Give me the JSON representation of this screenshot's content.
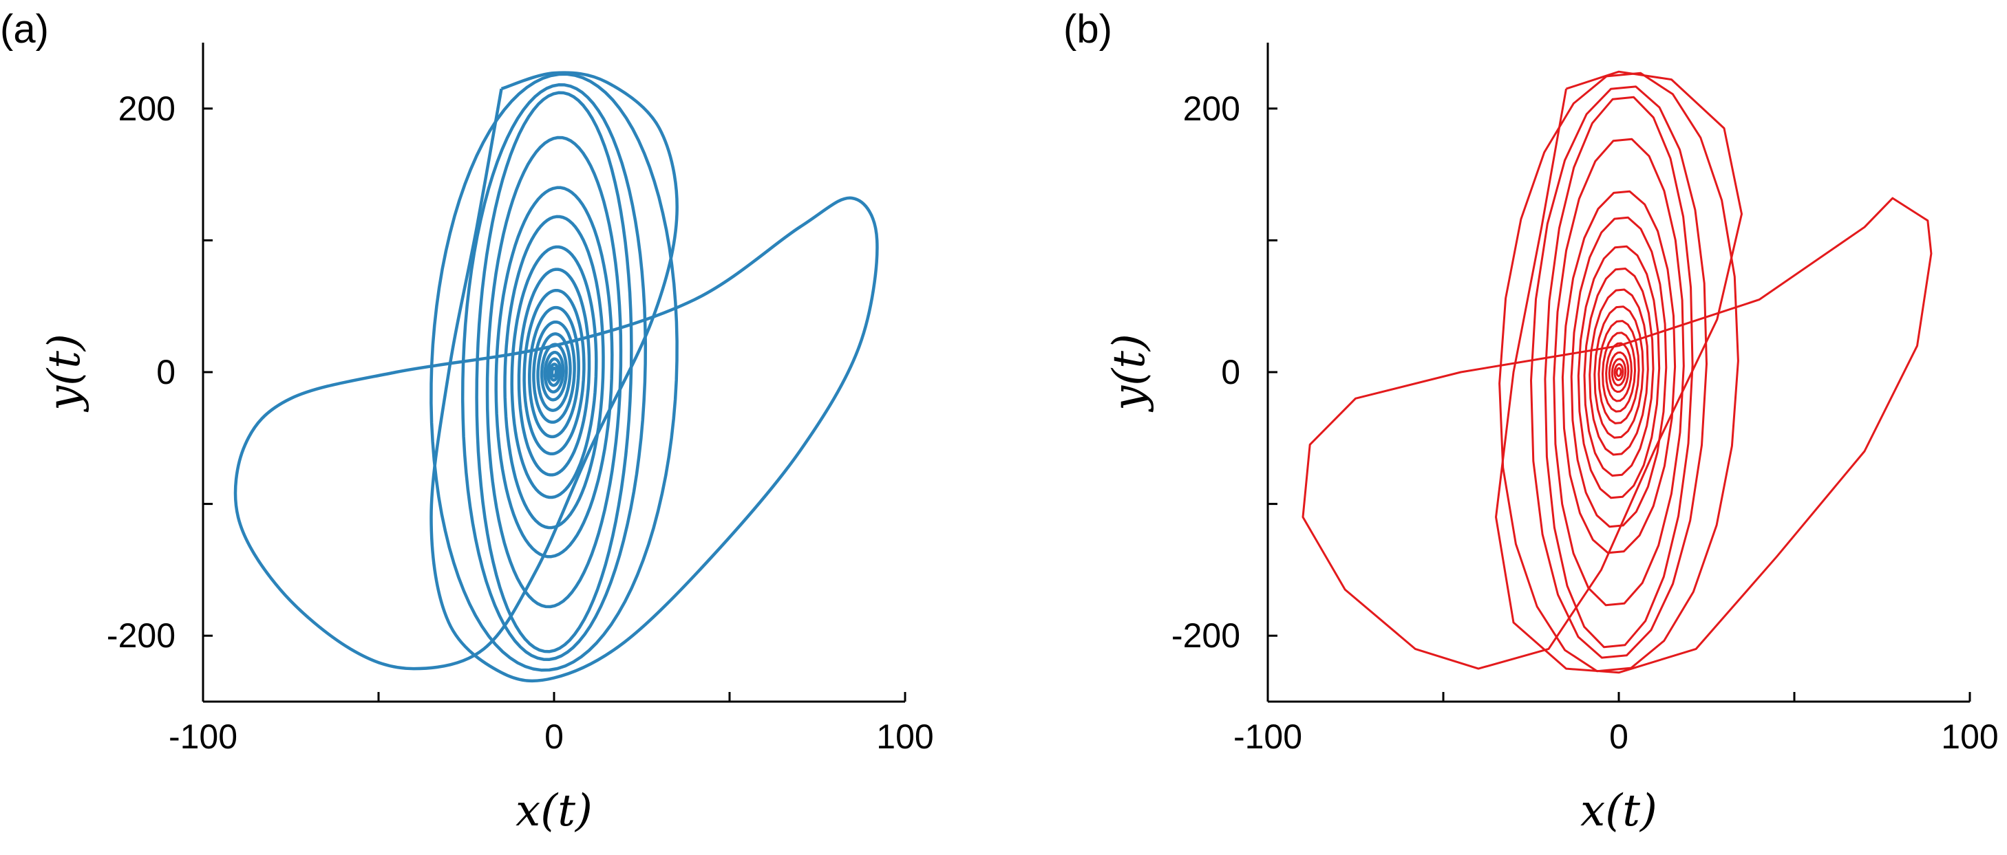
{
  "chart_data": [
    {
      "type": "line",
      "panel_label": "(a)",
      "xlabel": "x(t)",
      "ylabel": "y(t)",
      "xlim": [
        -100,
        100
      ],
      "ylim": [
        -250,
        250
      ],
      "xticks": [
        -100,
        -50,
        0,
        50,
        100
      ],
      "xtick_labels": [
        "-100",
        "",
        "0",
        "",
        "100"
      ],
      "yticks": [
        -200,
        -100,
        0,
        100,
        200
      ],
      "ytick_labels": [
        "-200",
        "",
        "0",
        "",
        "200"
      ],
      "grid": false,
      "color": "#2b83ba",
      "rendering": "smooth",
      "series": [
        {
          "description": "outer lobe trajectory",
          "loop": [
            [
              -15,
              215
            ],
            [
              0,
              227
            ],
            [
              15,
              220
            ],
            [
              30,
              185
            ],
            [
              35,
              120
            ],
            [
              28,
              40
            ],
            [
              10,
              -60
            ],
            [
              -5,
              -150
            ],
            [
              -20,
              -210
            ],
            [
              -40,
              -225
            ],
            [
              -58,
              -210
            ],
            [
              -78,
              -165
            ],
            [
              -90,
              -110
            ],
            [
              -88,
              -55
            ],
            [
              -75,
              -20
            ],
            [
              -45,
              0
            ],
            [
              0,
              20
            ],
            [
              40,
              55
            ],
            [
              70,
              110
            ],
            [
              85,
              132
            ],
            [
              92,
              100
            ],
            [
              87,
              20
            ],
            [
              70,
              -60
            ],
            [
              45,
              -140
            ],
            [
              20,
              -205
            ],
            [
              0,
              -232
            ],
            [
              -15,
              -228
            ],
            [
              -30,
              -190
            ],
            [
              -35,
              -110
            ],
            [
              -30,
              0
            ],
            [
              -22,
              110
            ],
            [
              -15,
              215
            ]
          ]
        },
        {
          "description": "inner spiral amplitudes",
          "spiral_x_amplitudes": [
            35,
            26,
            22,
            19,
            16.5,
            14,
            12,
            10,
            8.5,
            7,
            5.8,
            4.6,
            3.5,
            2.6,
            1.8,
            1.1,
            0.6
          ],
          "spiral_y_amplitudes": [
            226,
            218,
            212,
            178,
            140,
            118,
            95,
            78,
            62,
            49,
            38,
            29,
            21,
            15,
            10,
            6,
            3
          ]
        }
      ]
    },
    {
      "type": "line",
      "panel_label": "(b)",
      "xlabel": "x(t)",
      "ylabel": "y(t)",
      "xlim": [
        -100,
        100
      ],
      "ylim": [
        -250,
        250
      ],
      "xticks": [
        -100,
        -50,
        0,
        50,
        100
      ],
      "xtick_labels": [
        "-100",
        "",
        "0",
        "",
        "100"
      ],
      "yticks": [
        -200,
        -100,
        0,
        100,
        200
      ],
      "ytick_labels": [
        "-200",
        "",
        "0",
        "",
        "200"
      ],
      "grid": false,
      "color": "#e31a1c",
      "rendering": "polyline",
      "series": [
        {
          "description": "outer lobe trajectory",
          "loop": [
            [
              -15,
              215
            ],
            [
              0,
              228
            ],
            [
              15,
              222
            ],
            [
              30,
              185
            ],
            [
              35,
              120
            ],
            [
              28,
              40
            ],
            [
              10,
              -60
            ],
            [
              -5,
              -150
            ],
            [
              -20,
              -210
            ],
            [
              -40,
              -225
            ],
            [
              -58,
              -210
            ],
            [
              -78,
              -165
            ],
            [
              -90,
              -110
            ],
            [
              -88,
              -55
            ],
            [
              -75,
              -20
            ],
            [
              -45,
              0
            ],
            [
              0,
              20
            ],
            [
              40,
              55
            ],
            [
              70,
              110
            ],
            [
              78,
              132
            ],
            [
              88,
              115
            ],
            [
              89,
              90
            ],
            [
              85,
              20
            ],
            [
              70,
              -60
            ],
            [
              45,
              -140
            ],
            [
              22,
              -210
            ],
            [
              0,
              -228
            ],
            [
              -15,
              -225
            ],
            [
              -30,
              -190
            ],
            [
              -35,
              -110
            ],
            [
              -30,
              0
            ],
            [
              -22,
              110
            ],
            [
              -15,
              215
            ]
          ]
        },
        {
          "description": "inner spiral amplitudes",
          "spiral_x_amplitudes": [
            34,
            25,
            21,
            18.5,
            16,
            13.5,
            11.5,
            9.8,
            8.3,
            6.9,
            5.7,
            4.6,
            3.6,
            2.7,
            1.9,
            1.2,
            0.6
          ],
          "spiral_y_amplitudes": [
            228,
            218,
            210,
            178,
            138,
            118,
            96,
            79,
            63,
            50,
            39,
            30,
            22,
            15,
            10,
            6,
            3
          ]
        }
      ]
    }
  ]
}
